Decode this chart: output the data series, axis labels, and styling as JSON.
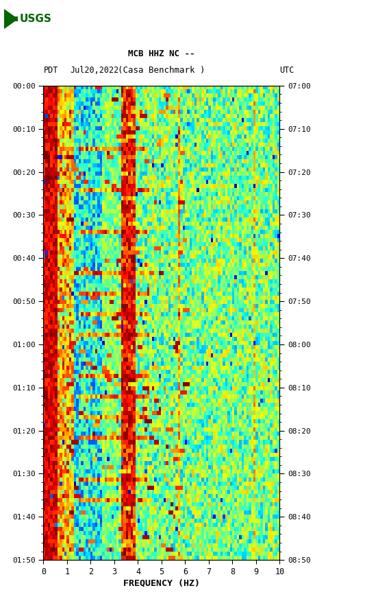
{
  "title_line1": "MCB HHZ NC --",
  "title_line2": "(Casa Benchmark )",
  "label_left": "PDT",
  "label_date": "Jul20,2022",
  "label_right": "UTC",
  "xlabel": "FREQUENCY (HZ)",
  "freq_ticks": [
    0,
    1,
    2,
    3,
    4,
    5,
    6,
    7,
    8,
    9,
    10
  ],
  "time_ticks_left": [
    "00:00",
    "00:10",
    "00:20",
    "00:30",
    "00:40",
    "00:50",
    "01:00",
    "01:10",
    "01:20",
    "01:30",
    "01:40",
    "01:50"
  ],
  "time_ticks_right": [
    "07:00",
    "07:10",
    "07:20",
    "07:30",
    "07:40",
    "07:50",
    "08:00",
    "08:10",
    "08:20",
    "08:30",
    "08:40",
    "08:50"
  ],
  "n_time": 115,
  "n_freq": 100,
  "background_color": "#ffffff",
  "colormap": "jet",
  "usgs_green": "#006600",
  "black_band_color": "#000000"
}
